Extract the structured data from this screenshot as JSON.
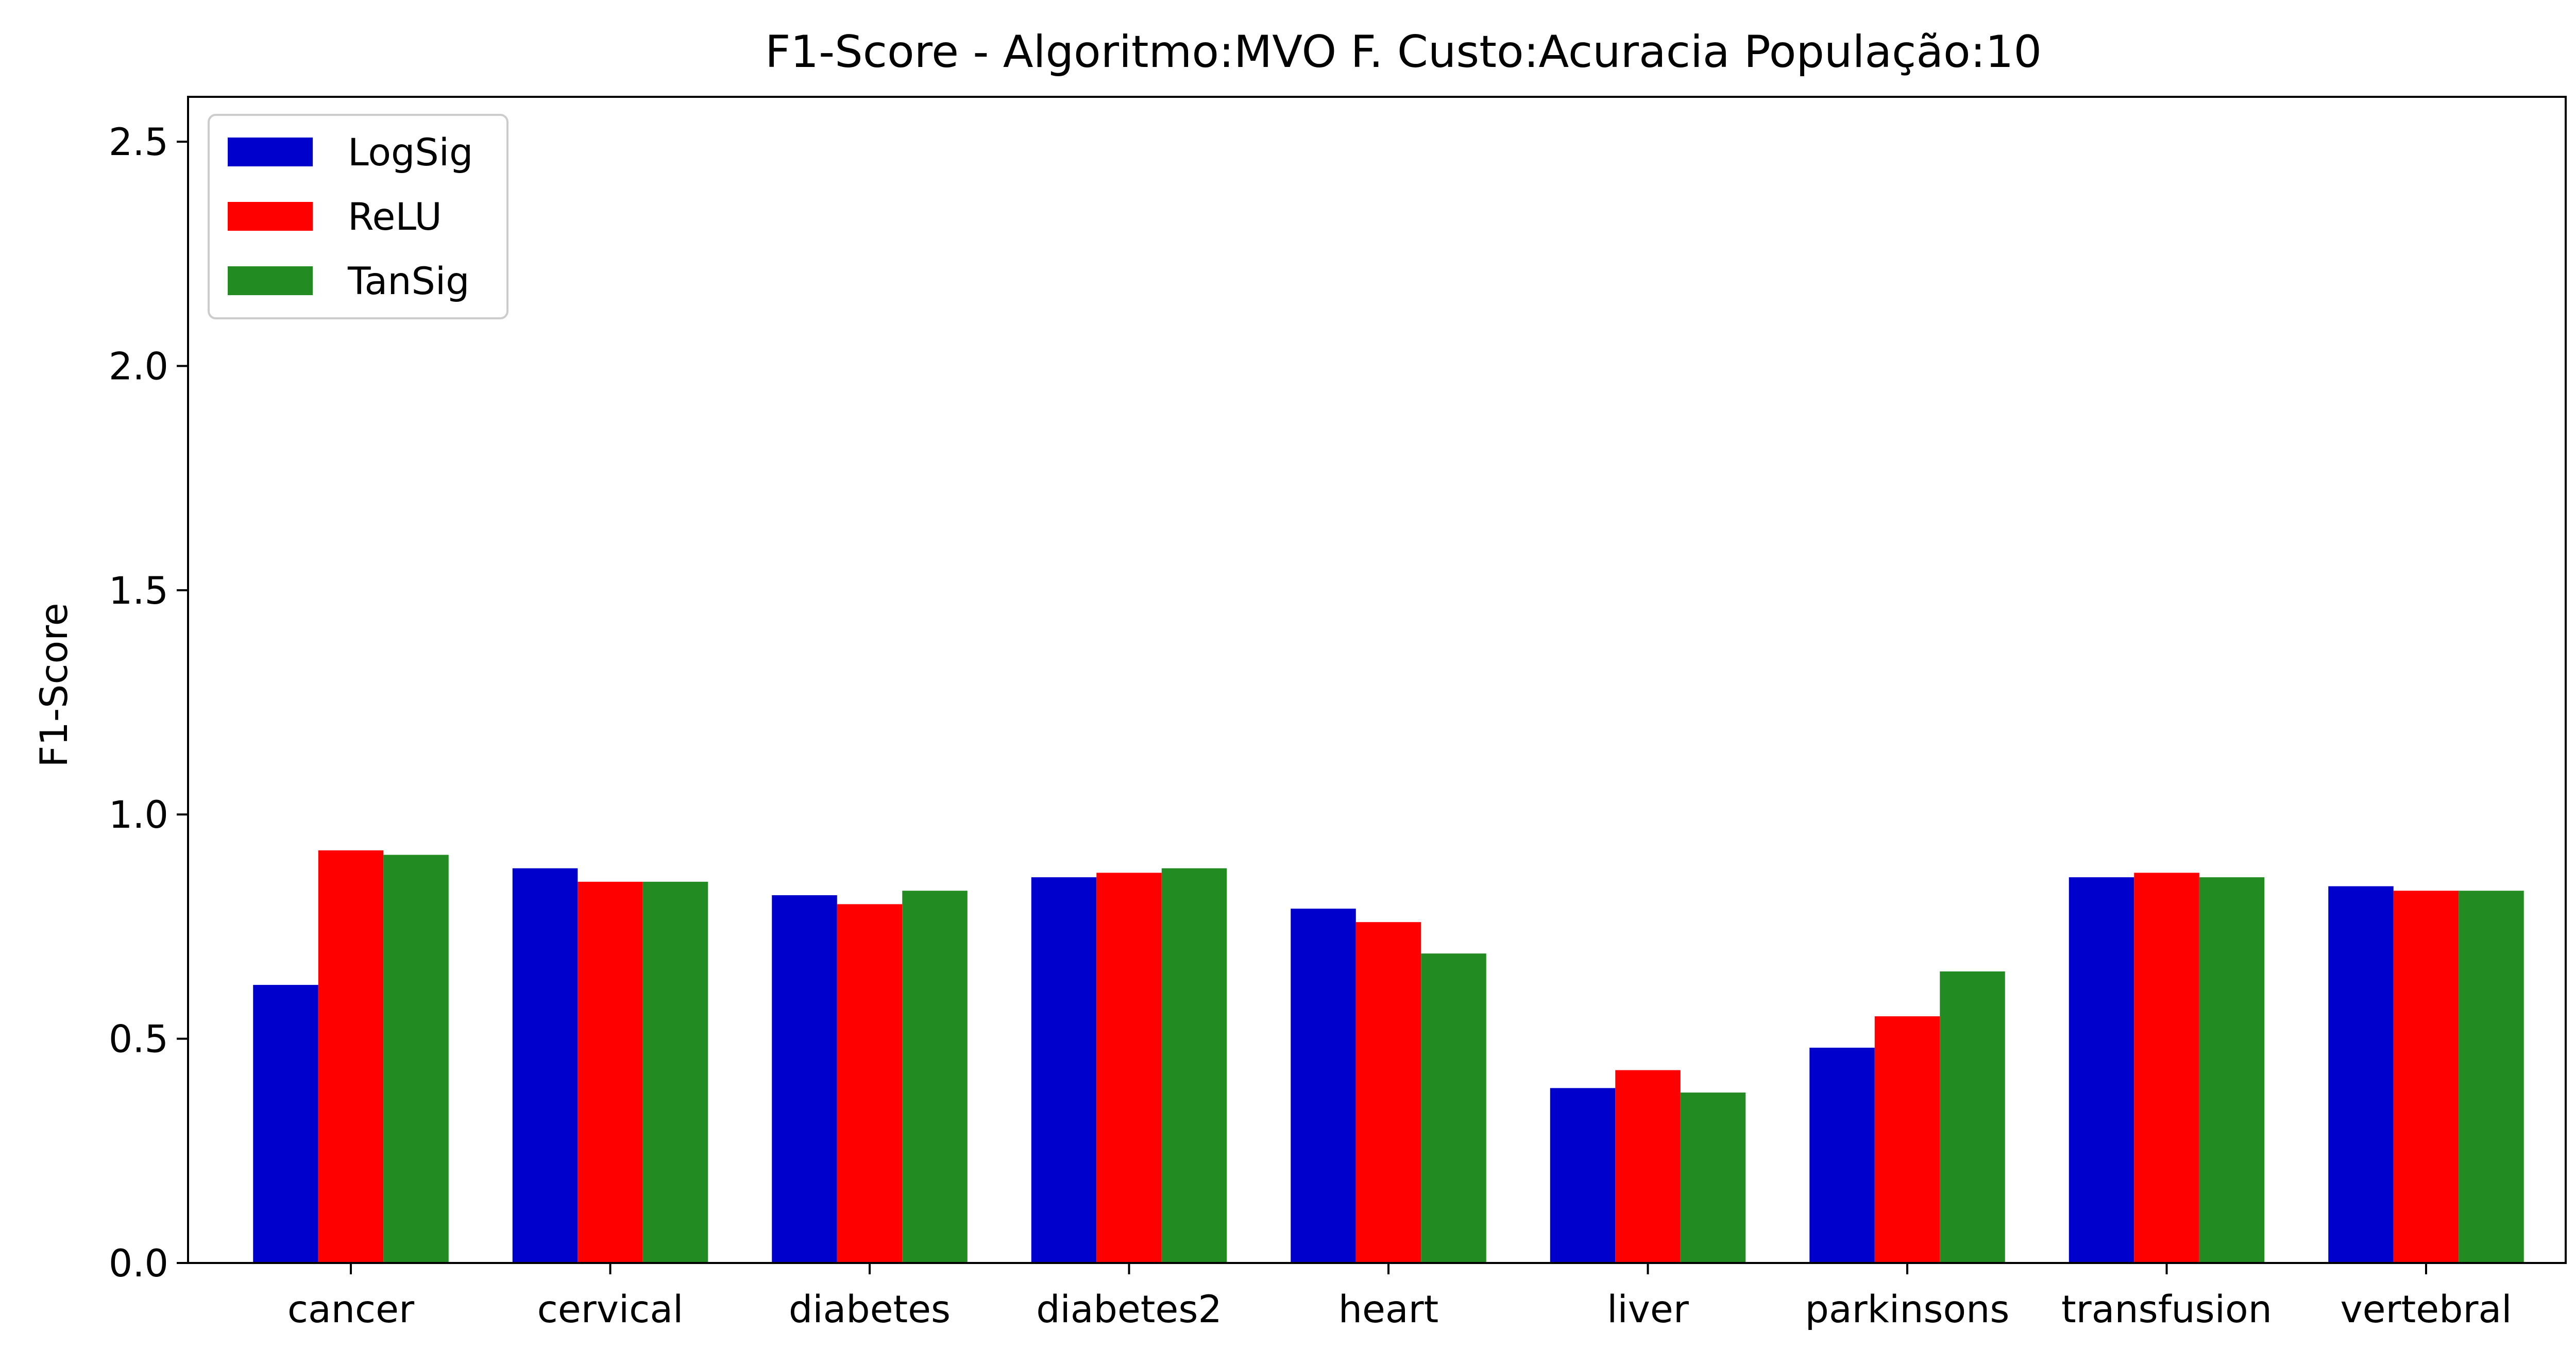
{
  "chart_data": {
    "type": "bar",
    "title": "F1-Score - Algoritmo:MVO F. Custo:Acuracia População:10",
    "xlabel": "",
    "ylabel": "F1-Score",
    "ylim": [
      0,
      2.6
    ],
    "yticks": [
      "0.0",
      "0.5",
      "1.0",
      "1.5",
      "2.0",
      "2.5"
    ],
    "categories": [
      "cancer",
      "cervical",
      "diabetes",
      "diabetes2",
      "heart",
      "liver",
      "parkinsons",
      "transfusion",
      "vertebral"
    ],
    "series": [
      {
        "name": "LogSig",
        "color": "#0000cc",
        "values": [
          0.62,
          0.88,
          0.82,
          0.86,
          0.79,
          0.39,
          0.48,
          0.86,
          0.84
        ]
      },
      {
        "name": "ReLU",
        "color": "#ff0000",
        "values": [
          0.92,
          0.85,
          0.8,
          0.87,
          0.76,
          0.43,
          0.55,
          0.87,
          0.83
        ]
      },
      {
        "name": "TanSig",
        "color": "#228b22",
        "values": [
          0.91,
          0.85,
          0.83,
          0.88,
          0.69,
          0.38,
          0.65,
          0.86,
          0.83
        ]
      }
    ],
    "legend_position": "top-left",
    "grid": false
  }
}
